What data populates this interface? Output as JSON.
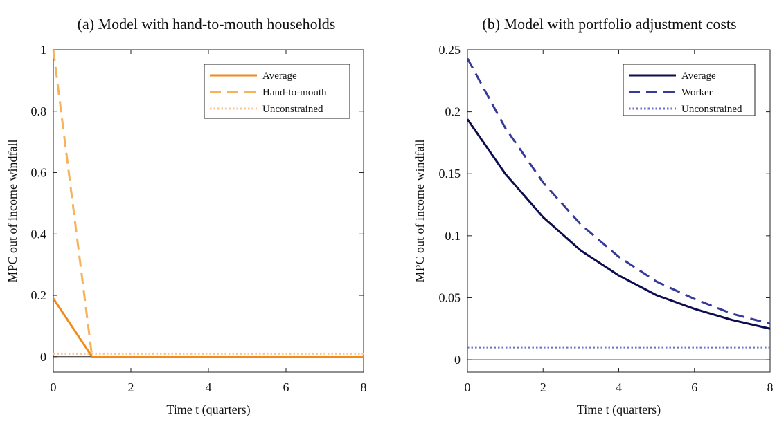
{
  "chart_data": [
    {
      "type": "line",
      "title": "(a) Model with hand-to-mouth households",
      "xlabel": "Time t (quarters)",
      "ylabel": "MPC out of income windfall",
      "xlim": [
        0,
        8
      ],
      "ylim": [
        -0.05,
        1
      ],
      "xticks": [
        0,
        2,
        4,
        6,
        8
      ],
      "yticks": [
        0,
        0.2,
        0.4,
        0.6,
        0.8,
        1
      ],
      "xtick_labels": [
        "0",
        "2",
        "4",
        "6",
        "8"
      ],
      "ytick_labels": [
        "0",
        "0.2",
        "0.4",
        "0.6",
        "0.8",
        "1"
      ],
      "zero_line": true,
      "legend_position": "top-right",
      "grid": false,
      "series": [
        {
          "name": "Average",
          "style": "solid",
          "color": "#f28a1a",
          "x": [
            0,
            1,
            2,
            3,
            4,
            5,
            6,
            7,
            8
          ],
          "y": [
            0.19,
            0.0,
            0.0,
            0.0,
            0.0,
            0.0,
            0.0,
            0.0,
            0.0
          ]
        },
        {
          "name": "Hand-to-mouth",
          "style": "dashed",
          "color": "#f6b25c",
          "x": [
            0,
            1,
            2,
            3,
            4,
            5,
            6,
            7,
            8
          ],
          "y": [
            1.0,
            0.0,
            0.0,
            0.0,
            0.0,
            0.0,
            0.0,
            0.0,
            0.0
          ]
        },
        {
          "name": "Unconstrained",
          "style": "dotted",
          "color": "#f8c490",
          "x": [
            0,
            1,
            2,
            3,
            4,
            5,
            6,
            7,
            8
          ],
          "y": [
            0.01,
            0.01,
            0.01,
            0.01,
            0.01,
            0.01,
            0.01,
            0.01,
            0.01
          ]
        }
      ]
    },
    {
      "type": "line",
      "title": "(b) Model with portfolio adjustment costs",
      "xlabel": "Time t (quarters)",
      "ylabel": "MPC out of income windfall",
      "xlim": [
        0,
        8
      ],
      "ylim": [
        -0.01,
        0.25
      ],
      "xticks": [
        0,
        2,
        4,
        6,
        8
      ],
      "yticks": [
        0,
        0.05,
        0.1,
        0.15,
        0.2,
        0.25
      ],
      "xtick_labels": [
        "0",
        "2",
        "4",
        "6",
        "8"
      ],
      "ytick_labels": [
        "0",
        "0.05",
        "0.1",
        "0.15",
        "0.2",
        "0.25"
      ],
      "zero_line": true,
      "legend_position": "top-right",
      "grid": false,
      "series": [
        {
          "name": "Average",
          "style": "solid",
          "color": "#0d0c4f",
          "x": [
            0,
            1,
            2,
            3,
            4,
            5,
            6,
            7,
            8
          ],
          "y": [
            0.194,
            0.15,
            0.115,
            0.088,
            0.068,
            0.052,
            0.041,
            0.032,
            0.025
          ]
        },
        {
          "name": "Worker",
          "style": "dashed",
          "color": "#353a9b",
          "x": [
            0,
            1,
            2,
            3,
            4,
            5,
            6,
            7,
            8
          ],
          "y": [
            0.243,
            0.187,
            0.143,
            0.109,
            0.083,
            0.063,
            0.049,
            0.037,
            0.029
          ]
        },
        {
          "name": "Unconstrained",
          "style": "dotted",
          "color": "#6b6fc7",
          "x": [
            0,
            1,
            2,
            3,
            4,
            5,
            6,
            7,
            8
          ],
          "y": [
            0.01,
            0.01,
            0.01,
            0.01,
            0.01,
            0.01,
            0.01,
            0.01,
            0.01
          ]
        }
      ]
    }
  ]
}
